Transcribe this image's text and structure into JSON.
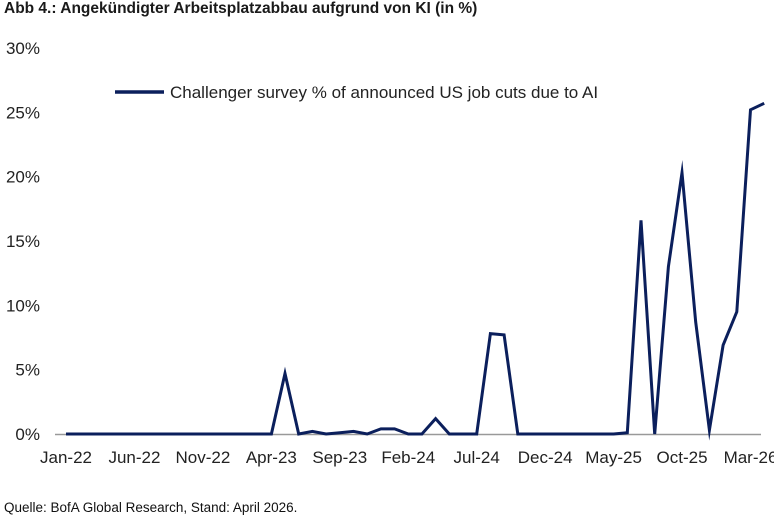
{
  "title": "Abb 4.: Angekündigter Arbeitsplatzabbau aufgrund von KI (in %)",
  "source": "Quelle: BofA Global Research, Stand: April 2026.",
  "colors": {
    "series": "#0b1f5c",
    "axis": "#999999",
    "text": "#222222"
  },
  "chart_data": {
    "type": "line",
    "title": "Abb 4.: Angekündigter Arbeitsplatzabbau aufgrund von KI (in %)",
    "xlabel": "",
    "ylabel": "",
    "ylim": [
      0,
      30
    ],
    "yticks": [
      "0%",
      "5%",
      "10%",
      "15%",
      "20%",
      "25%",
      "30%"
    ],
    "ytick_values": [
      0,
      5,
      10,
      15,
      20,
      25,
      30
    ],
    "grid": false,
    "legend": "top-left",
    "x_tick_labels": [
      "Jan-22",
      "Jun-22",
      "Nov-22",
      "Apr-23",
      "Sep-23",
      "Feb-24",
      "Jul-24",
      "Dec-24",
      "May-25",
      "Oct-25",
      "Mar-26"
    ],
    "x_tick_index": [
      0,
      5,
      10,
      15,
      20,
      25,
      30,
      35,
      40,
      45,
      50
    ],
    "x": [
      "Jan-22",
      "Feb-22",
      "Mar-22",
      "Apr-22",
      "May-22",
      "Jun-22",
      "Jul-22",
      "Aug-22",
      "Sep-22",
      "Oct-22",
      "Nov-22",
      "Dec-22",
      "Jan-23",
      "Feb-23",
      "Mar-23",
      "Apr-23",
      "May-23",
      "Jun-23",
      "Jul-23",
      "Aug-23",
      "Sep-23",
      "Oct-23",
      "Nov-23",
      "Dec-23",
      "Jan-24",
      "Feb-24",
      "Mar-24",
      "Apr-24",
      "May-24",
      "Jun-24",
      "Jul-24",
      "Aug-24",
      "Sep-24",
      "Oct-24",
      "Nov-24",
      "Dec-24",
      "Jan-25",
      "Feb-25",
      "Mar-25",
      "Apr-25",
      "May-25",
      "Jun-25",
      "Jul-25",
      "Aug-25",
      "Sep-25",
      "Oct-25",
      "Nov-25",
      "Dec-25",
      "Jan-26",
      "Feb-26",
      "Mar-26",
      "Apr-26"
    ],
    "series": [
      {
        "name": "Challenger survey % of announced US job cuts due to AI",
        "values": [
          0,
          0,
          0,
          0,
          0,
          0,
          0,
          0,
          0,
          0,
          0,
          0,
          0,
          0,
          0,
          0,
          4.7,
          0,
          0.2,
          0,
          0.1,
          0.2,
          0,
          0.4,
          0.4,
          0,
          0,
          1.2,
          0,
          0,
          0,
          7.8,
          7.7,
          0,
          0,
          0,
          0,
          0,
          0,
          0,
          0,
          0.1,
          16.6,
          0,
          13,
          20.3,
          8.7,
          0.3,
          6.9,
          9.5,
          25.2,
          25.7
        ]
      }
    ]
  }
}
